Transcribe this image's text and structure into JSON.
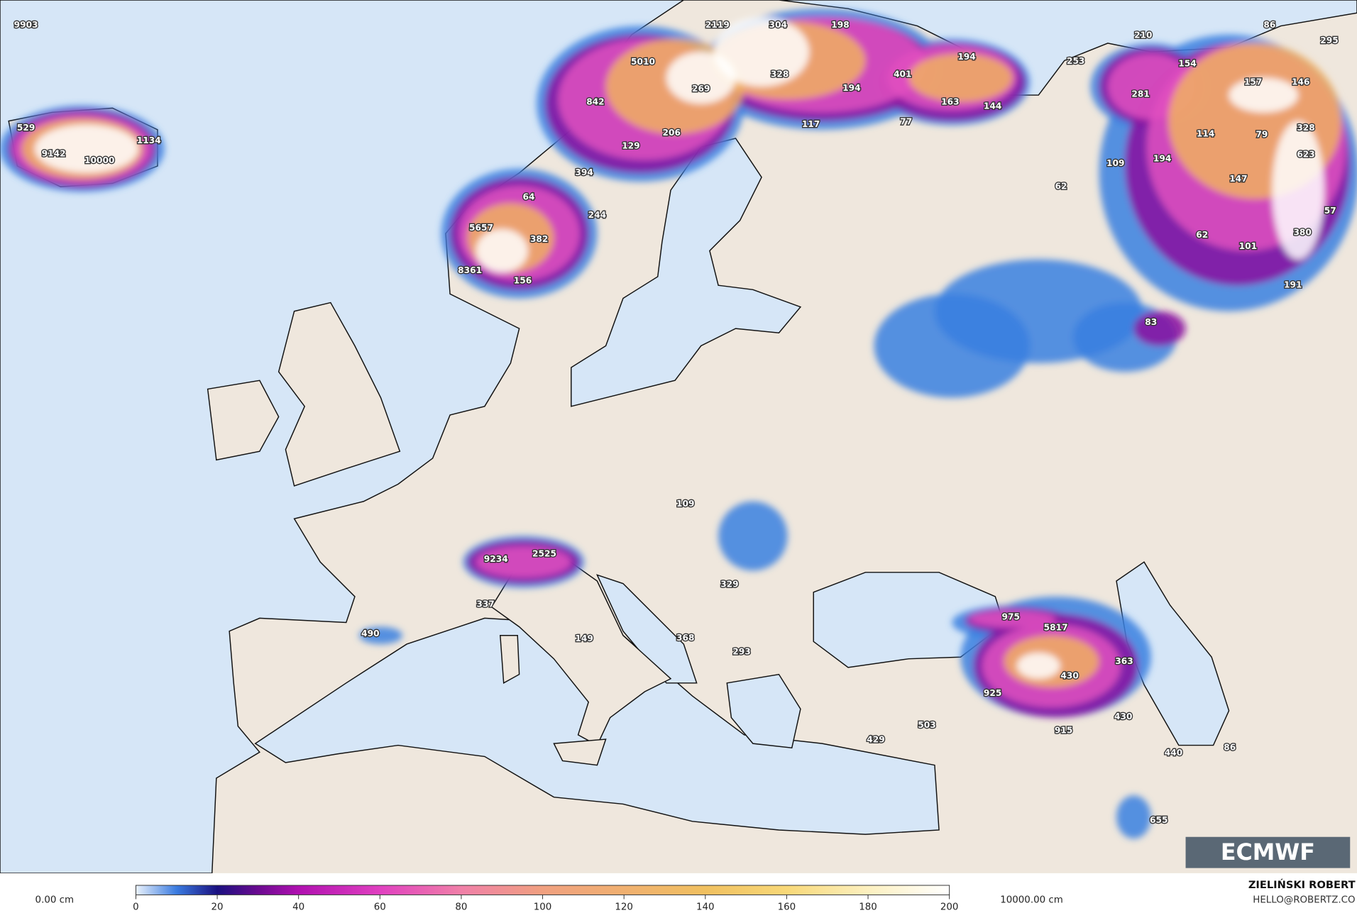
{
  "map": {
    "labels": [
      "9903",
      "529",
      "9142",
      "10000",
      "1134",
      "2119",
      "304",
      "198",
      "86",
      "295",
      "210",
      "253",
      "154",
      "5010",
      "194",
      "328",
      "401",
      "157",
      "146",
      "269",
      "194",
      "842",
      "163",
      "144",
      "281",
      "117",
      "77",
      "206",
      "114",
      "79",
      "328",
      "129",
      "623",
      "109",
      "194",
      "394",
      "147",
      "62",
      "64",
      "244",
      "57",
      "5657",
      "380",
      "382",
      "62",
      "101",
      "8361",
      "156",
      "191",
      "83",
      "109",
      "2525",
      "9234",
      "329",
      "337",
      "975",
      "5817",
      "490",
      "149",
      "368",
      "293",
      "430",
      "363",
      "925",
      "430",
      "503",
      "915",
      "429",
      "440",
      "86",
      "655"
    ]
  },
  "logo": "ECMWF",
  "colorbar": {
    "min_label": "0.00 cm",
    "max_label": "10000.00 cm",
    "lim": [
      0,
      200
    ],
    "ticks": [
      0,
      20,
      40,
      60,
      80,
      100,
      120,
      140,
      160,
      180,
      200
    ]
  },
  "credit": {
    "name": "ZIELIŃSKI ROBERT",
    "email": "HELLO@ROBERTZ.CO"
  }
}
